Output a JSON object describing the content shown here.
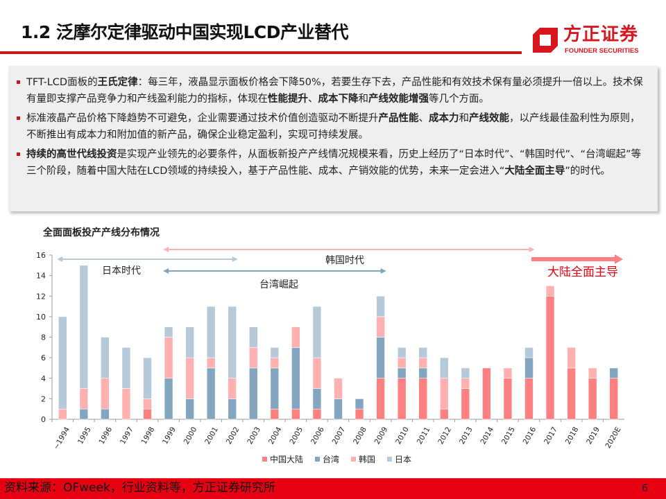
{
  "header": {
    "title": "1.2 泛摩尔定律驱动中国实现LCD产业替代",
    "logo_cn": "方正证券",
    "logo_en": "FOUNDER SECURITIES"
  },
  "bullets": [
    [
      {
        "t": "TFT-LCD面板的"
      },
      {
        "t": "王氏定律",
        "b": true
      },
      {
        "t": "：每三年，液晶显示面板价格会下降50%，若要生存下去，产品性能和有效技术保有量必须提升一倍以上。技术保有量即支撑产品竞争力和产线盈利能力的指标，体现在"
      },
      {
        "t": "性能提升",
        "b": true
      },
      {
        "t": "、"
      },
      {
        "t": "成本下降",
        "b": true
      },
      {
        "t": "和"
      },
      {
        "t": "产线效能增强",
        "b": true
      },
      {
        "t": "等几个方面。"
      }
    ],
    [
      {
        "t": "标准液晶产品价格下降趋势不可避免，企业需要通过技术价值创造驱动不断提升"
      },
      {
        "t": "产品性能",
        "b": true
      },
      {
        "t": "、"
      },
      {
        "t": "成本力",
        "b": true
      },
      {
        "t": "和"
      },
      {
        "t": "产线效能",
        "b": true
      },
      {
        "t": "，以产线最佳盈利性为原则，不断推出有成本力和附加值的新产品，确保企业稳定盈利，实现可持续发展。"
      }
    ],
    [
      {
        "t": "持续的高世代线投资",
        "b": true
      },
      {
        "t": "是实现产业领先的必要条件，从面板新投产产线情况规模来看，历史上经历了“日本时代”、“韩国时代”、“台湾崛起”等三个阶段，随着中国大陆在LCD领域的持续投入，基于产品性能、成本、产销效能的优势，未来一定会进入“"
      },
      {
        "t": "大陆全面主导",
        "b": true
      },
      {
        "t": "”的时代。"
      }
    ]
  ],
  "chart_data": {
    "type": "bar",
    "stacked": true,
    "title": "全面面板投产产线分布情况",
    "categories": [
      "~1994",
      "1995",
      "1996",
      "1997",
      "1998",
      "1999",
      "2000",
      "2001",
      "2002",
      "2003",
      "2004",
      "2005",
      "2006",
      "2007",
      "2008",
      "2009",
      "2010",
      "2011",
      "2012",
      "2013",
      "2014",
      "2015",
      "2016",
      "2017",
      "2018",
      "2019",
      "2020E"
    ],
    "series": [
      {
        "name": "中国大陆",
        "color": "#ff8080",
        "values": [
          0,
          0,
          0,
          0,
          1,
          0,
          0,
          0,
          0,
          0,
          1,
          1,
          1,
          0,
          1,
          4,
          4,
          4,
          1,
          3,
          5,
          4,
          4,
          12,
          5,
          4,
          4
        ]
      },
      {
        "name": "台湾",
        "color": "#82a6bf",
        "values": [
          0,
          1,
          1,
          0,
          0,
          4,
          2,
          5,
          2,
          5,
          4,
          6,
          2,
          2,
          1,
          4,
          1,
          1,
          0,
          0,
          0,
          0,
          2,
          0,
          0,
          0,
          1
        ]
      },
      {
        "name": "韩国",
        "color": "#ffb0b0",
        "values": [
          1,
          2,
          3,
          3,
          1,
          4,
          4,
          1,
          2,
          2,
          1,
          2,
          3,
          2,
          0,
          2,
          1,
          1,
          3,
          1,
          0,
          1,
          0,
          1,
          2,
          1,
          0
        ]
      },
      {
        "name": "日本",
        "color": "#b5c9d8",
        "values": [
          9,
          12,
          4,
          4,
          4,
          1,
          3,
          5,
          7,
          2,
          1,
          0,
          5,
          0,
          0,
          2,
          1,
          1,
          2,
          1,
          0,
          0,
          1,
          0,
          0,
          0,
          0
        ]
      }
    ],
    "ylim": [
      0,
      16
    ],
    "yticks": [
      0,
      2,
      4,
      6,
      8,
      10,
      12,
      14,
      16
    ],
    "grid": false,
    "legend": "bottom",
    "annotations": [
      {
        "text": "日本时代",
        "from": "~1994",
        "to": "2002",
        "color": "#b5c9d8",
        "text_color": "#222"
      },
      {
        "text": "韩国时代",
        "from": "1999",
        "to": "2016",
        "color": "#ffb0b0",
        "text_color": "#222"
      },
      {
        "text": "台湾崛起",
        "from": "1999",
        "to": "2009",
        "color": "#82a6bf",
        "text_color": "#222"
      },
      {
        "text": "大陆全面主导",
        "from": "2017",
        "to": "2020E",
        "color": "#ff8080",
        "text_color": "#e60012"
      }
    ]
  },
  "footer": {
    "source": "资料来源：OFweek，行业资料等，方正证券研究所",
    "page": "6"
  }
}
